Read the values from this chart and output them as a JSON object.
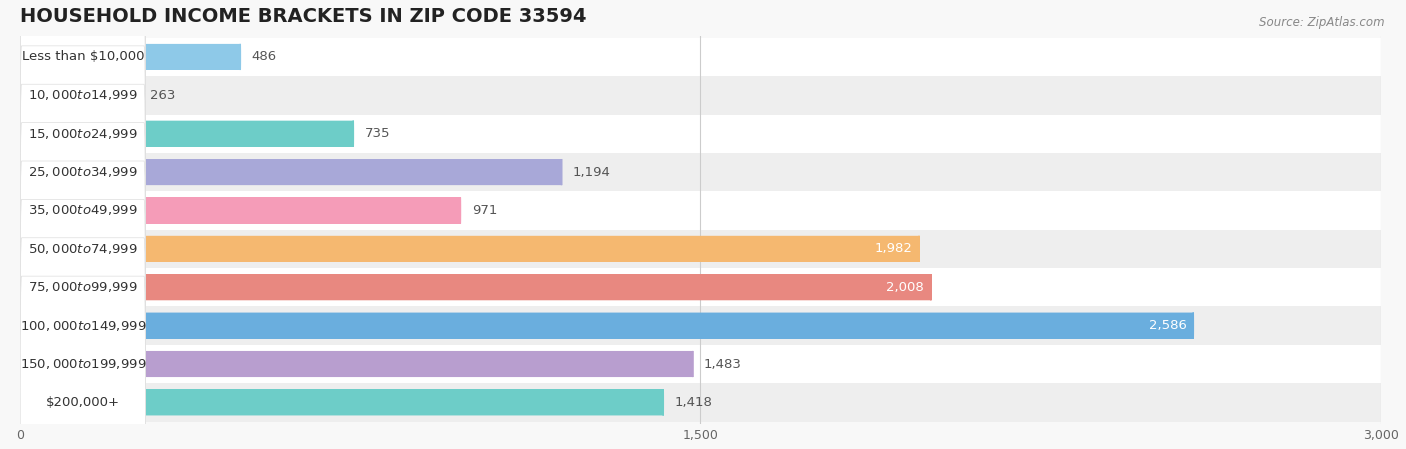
{
  "title": "HOUSEHOLD INCOME BRACKETS IN ZIP CODE 33594",
  "source": "Source: ZipAtlas.com",
  "categories": [
    "Less than $10,000",
    "$10,000 to $14,999",
    "$15,000 to $24,999",
    "$25,000 to $34,999",
    "$35,000 to $49,999",
    "$50,000 to $74,999",
    "$75,000 to $99,999",
    "$100,000 to $149,999",
    "$150,000 to $199,999",
    "$200,000+"
  ],
  "values": [
    486,
    263,
    735,
    1194,
    971,
    1982,
    2008,
    2586,
    1483,
    1418
  ],
  "bar_colors": [
    "#8ec9e8",
    "#c9a8d4",
    "#6dcdc8",
    "#a8a8d8",
    "#f59cb8",
    "#f5b870",
    "#e88880",
    "#6aaede",
    "#b89ecf",
    "#6dcdc8"
  ],
  "value_label_colors": [
    "#555555",
    "#555555",
    "#555555",
    "#555555",
    "#555555",
    "#ffffff",
    "#ffffff",
    "#ffffff",
    "#555555",
    "#555555"
  ],
  "xlim": [
    0,
    3000
  ],
  "xticks": [
    0,
    1500,
    3000
  ],
  "background_color": "#f8f8f8",
  "row_bg_even": "#ffffff",
  "row_bg_odd": "#eeeeee",
  "title_fontsize": 14,
  "label_fontsize": 9.5,
  "value_fontsize": 9.5
}
